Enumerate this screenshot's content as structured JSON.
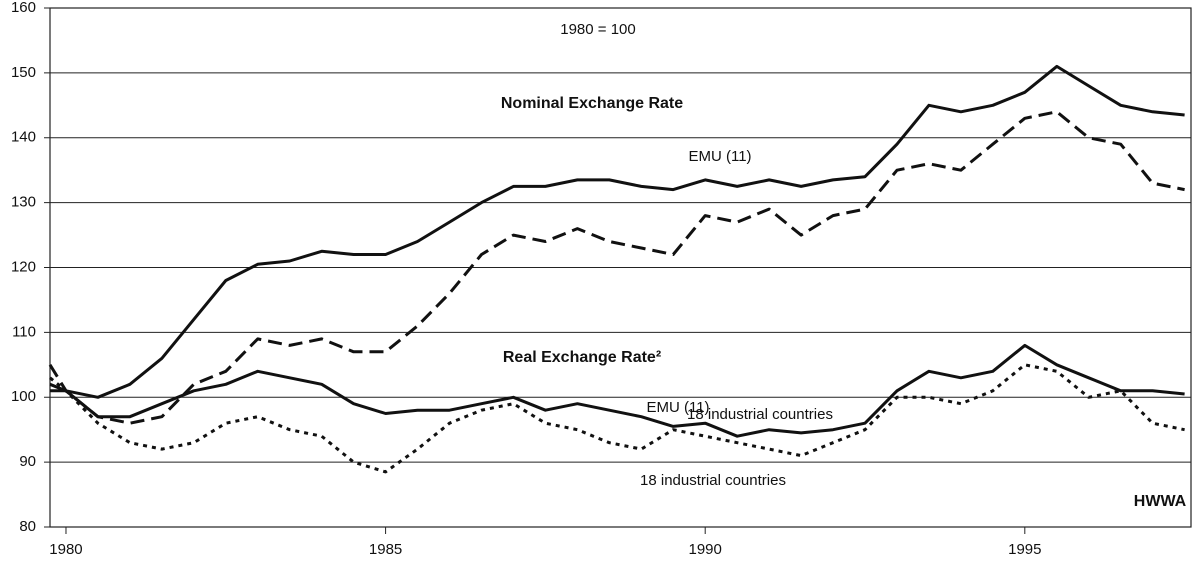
{
  "chart_data": {
    "type": "line",
    "annotations": [
      "1980 = 100",
      "Nominal Exchange Rate",
      "Real Exchange Rate²",
      "HWWA"
    ],
    "x": [
      1979.75,
      1980,
      1980.5,
      1981,
      1981.5,
      1982,
      1982.5,
      1983,
      1983.5,
      1984,
      1984.5,
      1985,
      1985.5,
      1986,
      1986.5,
      1987,
      1987.5,
      1988,
      1988.5,
      1989,
      1989.5,
      1990,
      1990.5,
      1991,
      1991.5,
      1992,
      1992.5,
      1993,
      1993.5,
      1994,
      1994.5,
      1995,
      1995.5,
      1996,
      1996.5,
      1997,
      1997.5
    ],
    "series": [
      {
        "name": "EMU (11)",
        "color": "#111111",
        "line_style": "solid",
        "values": [
          102,
          101,
          100,
          102,
          106,
          112,
          118,
          120.5,
          121,
          122.5,
          122,
          122,
          124,
          127,
          130,
          132.5,
          132.5,
          133.5,
          133.5,
          132.5,
          132,
          133.5,
          132.5,
          133.5,
          132.5,
          133.5,
          134,
          139,
          145,
          144,
          145,
          147,
          151,
          148,
          145,
          144,
          143.5
        ]
      },
      {
        "name": "18 industrial countries",
        "color": "#111111",
        "line_style": "dashed",
        "values": [
          105,
          101,
          97,
          96,
          97,
          102,
          104,
          109,
          108,
          109,
          107,
          107,
          111,
          116,
          122,
          125,
          124,
          126,
          124,
          123,
          122,
          128,
          127,
          129,
          125,
          128,
          129,
          135,
          136,
          135,
          139,
          143,
          144,
          140,
          139,
          133,
          132
        ]
      },
      {
        "name": "EMU (11)",
        "color": "#111111",
        "line_style": "solid",
        "values": [
          101,
          101,
          97,
          97,
          99,
          101,
          102,
          104,
          103,
          102,
          99,
          97.5,
          98,
          98,
          99,
          100,
          98,
          99,
          98,
          97,
          95.5,
          96,
          94,
          95,
          94.5,
          95,
          96,
          101,
          104,
          103,
          104,
          108,
          105,
          103,
          101,
          101,
          100.5
        ]
      },
      {
        "name": "18 industrial countries",
        "color": "#111111",
        "line_style": "dotted",
        "values": [
          103,
          101,
          96,
          93,
          92,
          93,
          96,
          97,
          95,
          94,
          90,
          88.5,
          92,
          96,
          98,
          99,
          96,
          95,
          93,
          92,
          95,
          94,
          93,
          92,
          91,
          93,
          95,
          100,
          100,
          99,
          101,
          105,
          104,
          100,
          101,
          96,
          95
        ]
      }
    ],
    "xlim": [
      1979.75,
      1997.6
    ],
    "xticks": [
      1980,
      1985,
      1990,
      1995
    ],
    "ylim": [
      80,
      160
    ],
    "yticks": [
      80,
      90,
      100,
      110,
      120,
      130,
      140,
      150,
      160
    ],
    "grid": true
  }
}
